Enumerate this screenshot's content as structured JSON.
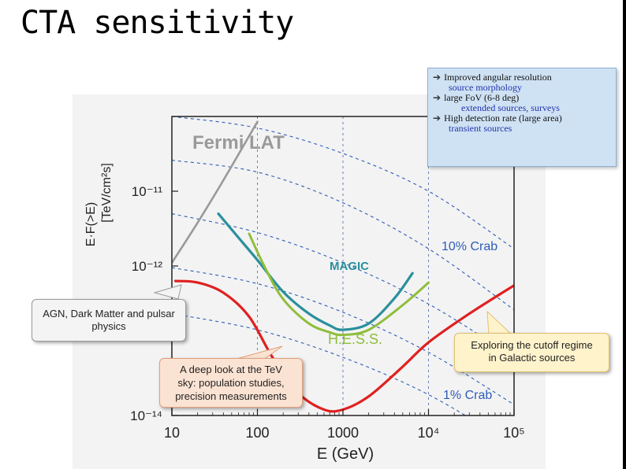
{
  "page": {
    "title": "CTA sensitivity"
  },
  "chart_data": {
    "type": "line",
    "xscale": "log",
    "yscale": "log",
    "xlabel": "E (GeV)",
    "ylabel": "E·F(>E) [TeV/cm²s]",
    "xlim": [
      10,
      100000
    ],
    "ylim": [
      1e-14,
      1e-10
    ],
    "xticks": [
      "10",
      "100",
      "1000",
      "10⁴",
      "10⁵"
    ],
    "yticks": [
      "10⁻¹¹",
      "10⁻¹²",
      "10⁻¹⁴"
    ],
    "series": [
      {
        "name": "Fermi LAT",
        "color": "#999999",
        "x": [
          10,
          20,
          40,
          100
        ],
        "y": [
          1.1e-12,
          3.8e-12,
          1.4e-11,
          8.5e-11
        ]
      },
      {
        "name": "MAGIC",
        "color": "#2a8f9c",
        "x": [
          35,
          60,
          100,
          200,
          400,
          700,
          1000,
          2000,
          4000,
          6500
        ],
        "y": [
          5e-12,
          2.4e-12,
          1.2e-12,
          4.5e-13,
          2.3e-13,
          1.6e-13,
          1.4e-13,
          1.7e-13,
          3.7e-13,
          8e-13
        ]
      },
      {
        "name": "H.E.S.S.",
        "color": "#8fbe3b",
        "x": [
          80,
          120,
          200,
          400,
          700,
          1000,
          2000,
          5000,
          10000
        ],
        "y": [
          2.7e-12,
          1e-12,
          3.6e-13,
          1.7e-13,
          1.3e-13,
          1.2e-13,
          1.4e-13,
          3e-13,
          6e-13
        ]
      },
      {
        "name": "CTA",
        "color": "#e02020",
        "x": [
          11,
          20,
          40,
          80,
          150,
          300,
          600,
          1000,
          2000,
          5000,
          10000,
          30000,
          100000
        ],
        "y": [
          6.3e-13,
          6e-13,
          4.4e-13,
          2.1e-13,
          6e-14,
          2e-14,
          1.2e-14,
          1.2e-14,
          1.8e-14,
          4.5e-14,
          9.5e-14,
          2.3e-13,
          5.5e-13
        ]
      }
    ],
    "reference_lines": [
      {
        "label": "10% Crab"
      },
      {
        "label": "1% Crab"
      }
    ],
    "annotations": {
      "fermi": "Fermi LAT",
      "magic": "MAGIC",
      "hess": "H.E.S.S.",
      "crab10": "10% Crab",
      "crab1": "1% Crab"
    }
  },
  "callouts": {
    "agn": [
      "AGN, Dark Matter and pulsar",
      "physics"
    ],
    "deep": [
      "A deep look at the TeV",
      "sky: population studies,",
      "precision measurements"
    ],
    "cutoff": [
      "Exploring the cutoff regime",
      "in Galactic sources"
    ]
  },
  "info_box": {
    "rows": [
      {
        "text": "Improved angular resolution",
        "kind": "main"
      },
      {
        "text": "source morphology",
        "kind": "sub"
      },
      {
        "text": "large FoV (6-8 deg)",
        "kind": "main"
      },
      {
        "text": "extended sources, surveys",
        "kind": "sub"
      },
      {
        "text": "High detection rate (large area)",
        "kind": "main"
      },
      {
        "text": "transient sources",
        "kind": "sub"
      }
    ]
  },
  "colors": {
    "crab_dashed": "#2e5cb8",
    "axis": "#222222",
    "grid": "#6a7fb4"
  }
}
